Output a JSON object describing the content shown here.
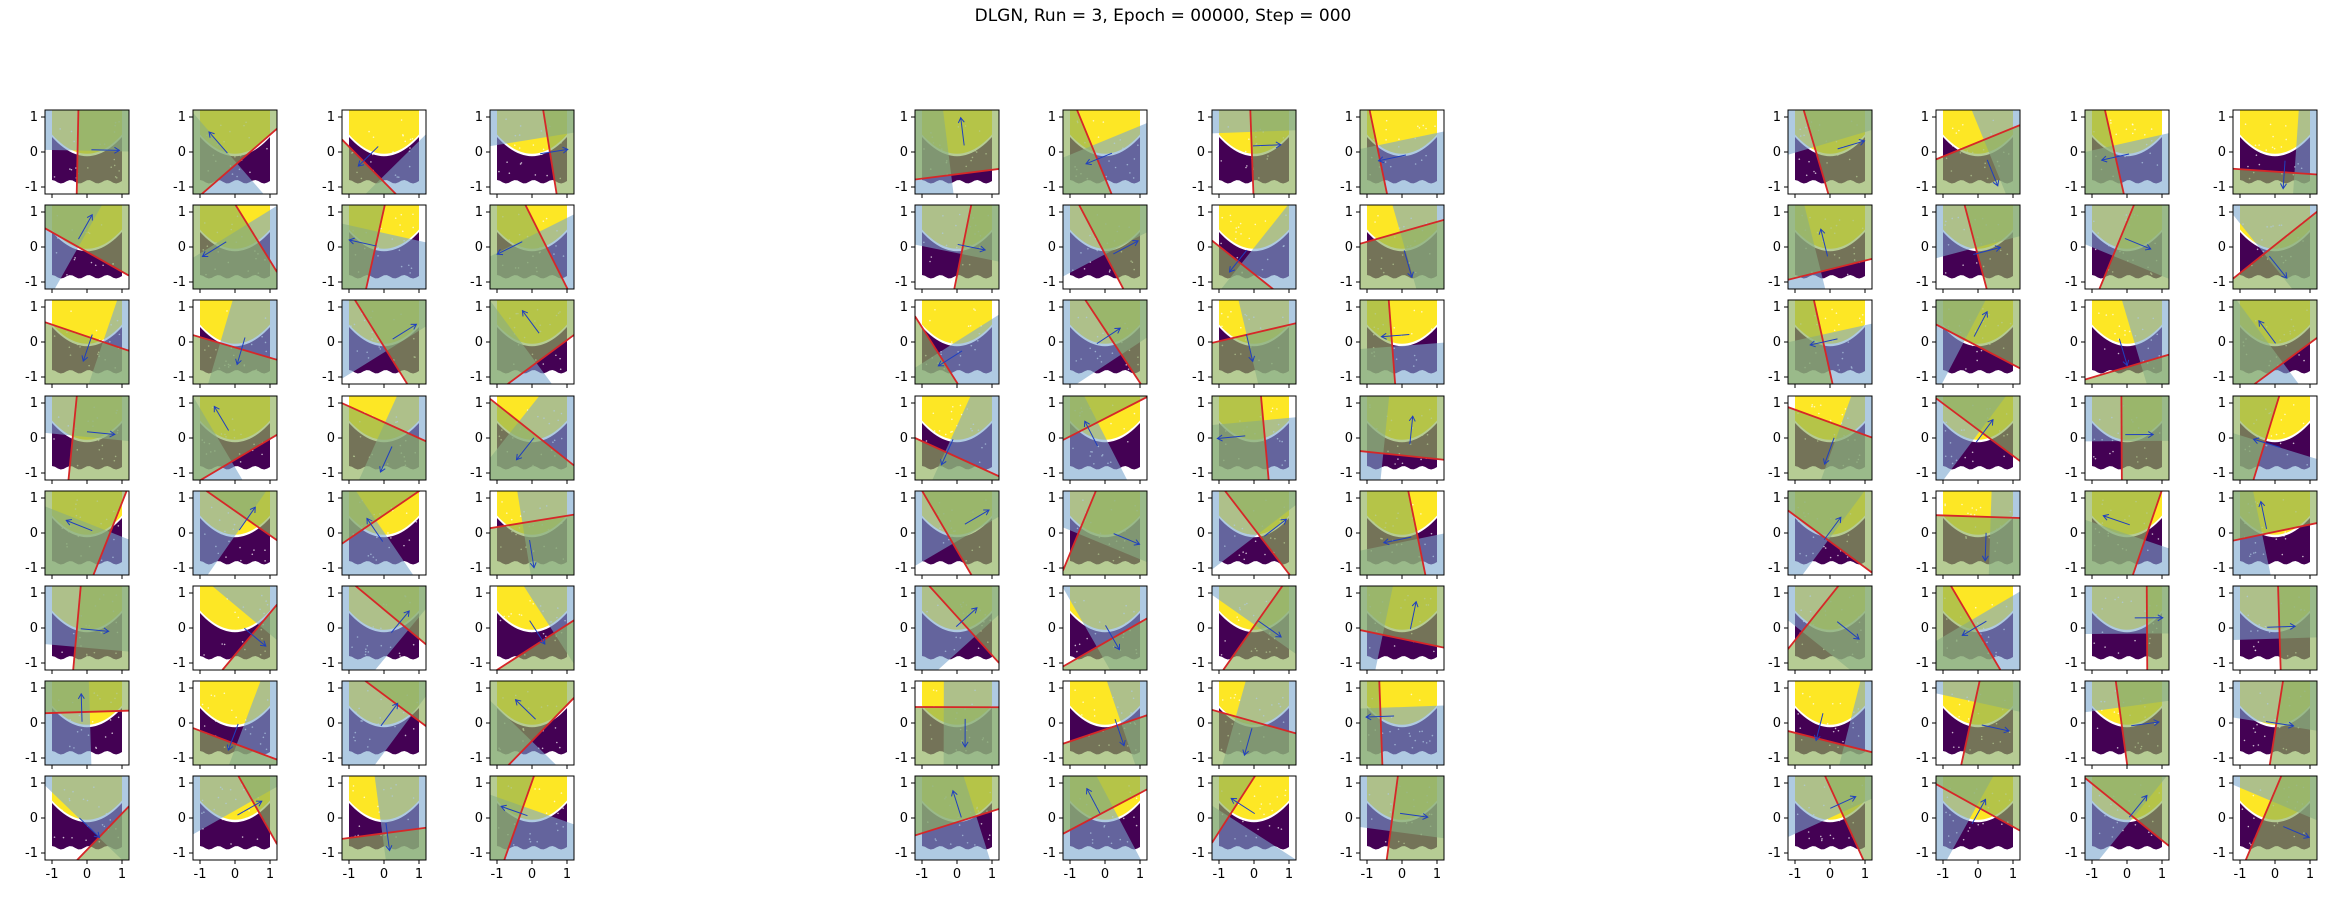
{
  "title": "DLGN, Run = 3, Epoch = 00000, Step = 000",
  "colors": {
    "class_pos": "#fde725",
    "class_neg": "#440154",
    "halfplane_green": "#8fb05a",
    "halfplane_blue": "#7aa6cf",
    "boundary": "#d62728",
    "arrow": "#1f3fbf"
  },
  "chart_data": {
    "type": "scatter",
    "layout": "grid of small multiples",
    "panel_groups": 3,
    "rows": 8,
    "cols_per_group": 4,
    "panel_count": 96,
    "xlim": [
      -1.2,
      1.2
    ],
    "ylim": [
      -1.2,
      1.2
    ],
    "x_ticks": [
      "-1",
      "0",
      "1"
    ],
    "y_ticks": [
      "1",
      "0",
      "-1"
    ],
    "grid": false,
    "legend": "none",
    "series": [
      {
        "class": 1,
        "color": "#fde725",
        "shape": "upper region above parabola"
      },
      {
        "class": 0,
        "color": "#440154",
        "shape": "lower U-shaped band"
      }
    ],
    "panels_description": "each panel shows the two-class dataset, a red separating line, a green and a blue half-plane overlay, and a blue normal-vector arrow"
  }
}
